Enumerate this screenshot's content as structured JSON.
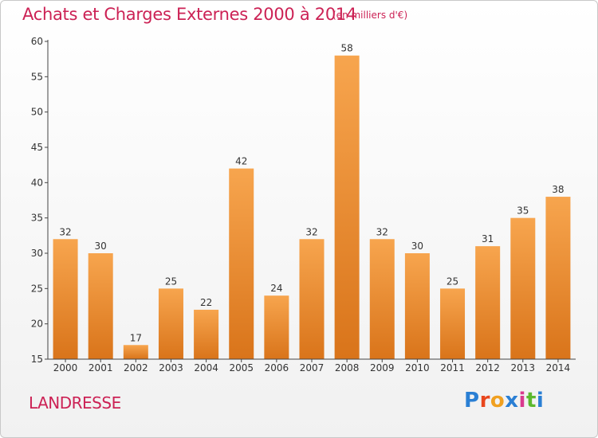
{
  "header": {
    "title": "Achats et Charges Externes 2000 à 2014",
    "subtitle": "(en milliers d'€)"
  },
  "footer": {
    "commune": "LANDRESSE",
    "logo": "Proxiti",
    "logo_colors": [
      "#2a7fd4",
      "#e8461d",
      "#f0a020",
      "#2a7fd4",
      "#d93a8e",
      "#5cb82e",
      "#2a7fd4"
    ]
  },
  "colors": {
    "bar_top": "#f7a54e",
    "bar_bottom": "#d9741a",
    "accent": "#cc2255"
  },
  "chart_data": {
    "type": "bar",
    "categories": [
      "2000",
      "2001",
      "2002",
      "2003",
      "2004",
      "2005",
      "2006",
      "2007",
      "2008",
      "2009",
      "2010",
      "2011",
      "2012",
      "2013",
      "2014"
    ],
    "values": [
      32,
      30,
      17,
      25,
      22,
      42,
      24,
      32,
      58,
      32,
      30,
      25,
      31,
      35,
      38
    ],
    "title": "Achats et Charges Externes 2000 à 2014",
    "xlabel": "",
    "ylabel": "",
    "ylim": [
      15,
      60
    ],
    "yticks": [
      15,
      20,
      25,
      30,
      35,
      40,
      45,
      50,
      55,
      60
    ],
    "grid": false,
    "legend": "none"
  }
}
